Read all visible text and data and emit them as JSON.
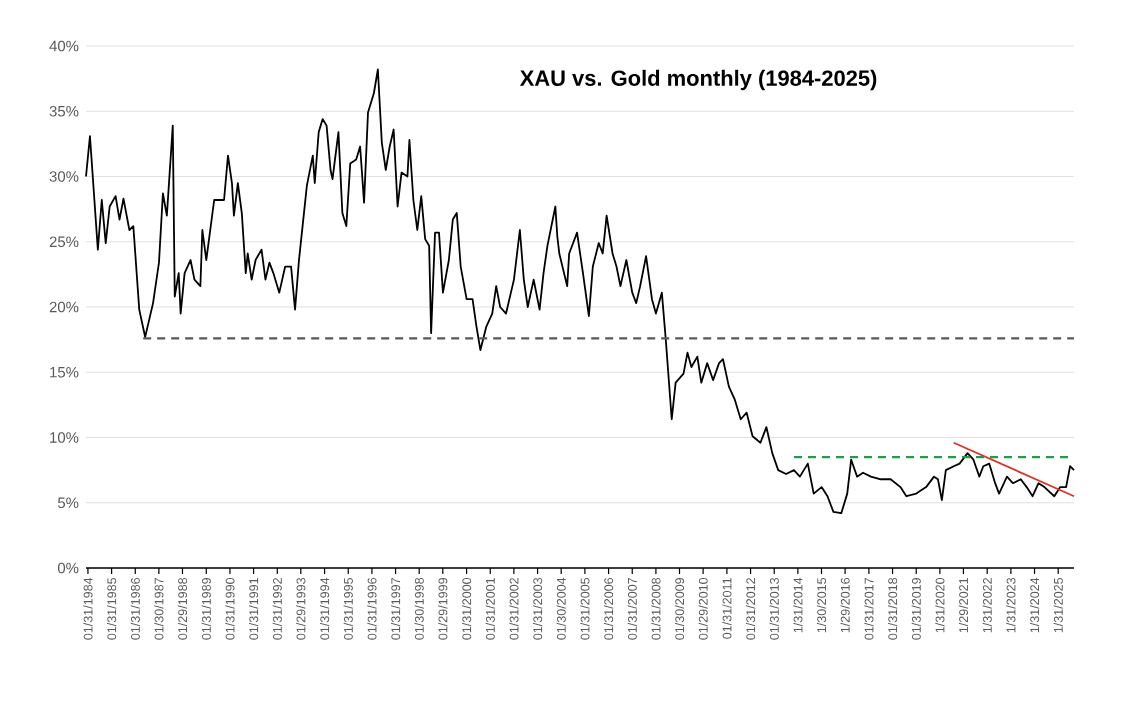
{
  "chart_data": {
    "type": "line",
    "title": "XAU vs. Gold monthly (1984-2025)",
    "xlim": [
      "1984-01",
      "2025-10"
    ],
    "ylim": [
      0,
      40
    ],
    "grid": "y",
    "yticks": [
      {
        "value": 0,
        "label": "0%"
      },
      {
        "value": 5,
        "label": "5%"
      },
      {
        "value": 10,
        "label": "10%"
      },
      {
        "value": 15,
        "label": "15%"
      },
      {
        "value": 20,
        "label": "20%"
      },
      {
        "value": 25,
        "label": "25%"
      },
      {
        "value": 30,
        "label": "30%"
      },
      {
        "value": 35,
        "label": "35%"
      },
      {
        "value": 40,
        "label": "40%"
      }
    ],
    "xticks": [
      {
        "value": "1984-01-31",
        "label": "01/31/1984"
      },
      {
        "value": "1985-01-31",
        "label": "01/31/1985"
      },
      {
        "value": "1986-01-31",
        "label": "01/31/1986"
      },
      {
        "value": "1987-01-30",
        "label": "01/30/1987"
      },
      {
        "value": "1988-01-29",
        "label": "01/29/1988"
      },
      {
        "value": "1989-01-31",
        "label": "01/31/1989"
      },
      {
        "value": "1990-01-31",
        "label": "01/31/1990"
      },
      {
        "value": "1991-01-31",
        "label": "01/31/1991"
      },
      {
        "value": "1992-01-31",
        "label": "01/31/1992"
      },
      {
        "value": "1993-01-29",
        "label": "01/29/1993"
      },
      {
        "value": "1994-01-31",
        "label": "01/31/1994"
      },
      {
        "value": "1995-01-31",
        "label": "01/31/1995"
      },
      {
        "value": "1996-01-31",
        "label": "01/31/1996"
      },
      {
        "value": "1997-01-31",
        "label": "01/31/1997"
      },
      {
        "value": "1998-01-30",
        "label": "01/30/1998"
      },
      {
        "value": "1999-01-29",
        "label": "01/29/1999"
      },
      {
        "value": "2000-01-31",
        "label": "01/31/2000"
      },
      {
        "value": "2001-01-31",
        "label": "01/31/2001"
      },
      {
        "value": "2002-01-31",
        "label": "01/31/2002"
      },
      {
        "value": "2003-01-31",
        "label": "01/31/2003"
      },
      {
        "value": "2004-01-30",
        "label": "01/30/2004"
      },
      {
        "value": "2005-01-31",
        "label": "01/31/2005"
      },
      {
        "value": "2006-01-31",
        "label": "01/31/2006"
      },
      {
        "value": "2007-01-31",
        "label": "01/31/2007"
      },
      {
        "value": "2008-01-31",
        "label": "01/31/2008"
      },
      {
        "value": "2009-01-30",
        "label": "01/30/2009"
      },
      {
        "value": "2010-01-29",
        "label": "01/29/2010"
      },
      {
        "value": "2011-01-31",
        "label": "01/31/2011"
      },
      {
        "value": "2012-01-31",
        "label": "01/31/2012"
      },
      {
        "value": "2013-01-31",
        "label": "01/31/2013"
      },
      {
        "value": "2014-01-31",
        "label": "1/31/2014"
      },
      {
        "value": "2015-01-30",
        "label": "1/30/2015"
      },
      {
        "value": "2016-01-29",
        "label": "1/29/2016"
      },
      {
        "value": "2017-01-31",
        "label": "01/31/2017"
      },
      {
        "value": "2018-01-31",
        "label": "01/31/2018"
      },
      {
        "value": "2019-01-31",
        "label": "01/31/2019"
      },
      {
        "value": "2020-01-31",
        "label": "1/31/2020"
      },
      {
        "value": "2021-01-29",
        "label": "1/29/2021"
      },
      {
        "value": "2022-01-31",
        "label": "1/31/2022"
      },
      {
        "value": "2023-01-31",
        "label": "1/31/2023"
      },
      {
        "value": "2024-01-31",
        "label": "1/31/2024"
      },
      {
        "value": "2025-01-31",
        "label": "1/31/2025"
      }
    ],
    "series": [
      {
        "color": "#000000",
        "line_style": "solid",
        "x": [
          "1984-01",
          "1984-03",
          "1984-07",
          "1984-09",
          "1984-11",
          "1985-01",
          "1985-04",
          "1985-06",
          "1985-08",
          "1985-11",
          "1986-01",
          "1986-04",
          "1986-07",
          "1986-11",
          "1987-02",
          "1987-04",
          "1987-06",
          "1987-09",
          "1987-10",
          "1987-12",
          "1988-01",
          "1988-03",
          "1988-06",
          "1988-08",
          "1988-11",
          "1988-12",
          "1989-02",
          "1989-06",
          "1989-11",
          "1990-01",
          "1990-03",
          "1990-04",
          "1990-06",
          "1990-08",
          "1990-10",
          "1990-11",
          "1991-01",
          "1991-03",
          "1991-06",
          "1991-08",
          "1991-10",
          "1991-12",
          "1992-03",
          "1992-06",
          "1992-09",
          "1992-11",
          "1993-01",
          "1993-05",
          "1993-08",
          "1993-09",
          "1993-11",
          "1994-01",
          "1994-03",
          "1994-05",
          "1994-06",
          "1994-09",
          "1994-11",
          "1995-01",
          "1995-03",
          "1995-06",
          "1995-08",
          "1995-10",
          "1995-12",
          "1996-03",
          "1996-05",
          "1996-07",
          "1996-09",
          "1996-11",
          "1997-01",
          "1997-03",
          "1997-05",
          "1997-08",
          "1997-09",
          "1997-11",
          "1998-01",
          "1998-03",
          "1998-05",
          "1998-07",
          "1998-08",
          "1998-10",
          "1998-12",
          "1999-02",
          "1999-05",
          "1999-07",
          "1999-09",
          "1999-11",
          "2000-02",
          "2000-05",
          "2000-07",
          "2000-09",
          "2000-12",
          "2001-03",
          "2001-05",
          "2001-07",
          "2001-10",
          "2002-02",
          "2002-05",
          "2002-07",
          "2002-09",
          "2002-12",
          "2003-03",
          "2003-05",
          "2003-07",
          "2003-11",
          "2003-12",
          "2004-01",
          "2004-05",
          "2004-06",
          "2004-10",
          "2005-01",
          "2005-04",
          "2005-06",
          "2005-09",
          "2005-11",
          "2006-01",
          "2006-04",
          "2006-06",
          "2006-08",
          "2006-11",
          "2007-02",
          "2007-04",
          "2007-06",
          "2007-09",
          "2007-12",
          "2008-02",
          "2008-05",
          "2008-07",
          "2008-10",
          "2008-12",
          "2009-04",
          "2009-06",
          "2009-08",
          "2009-11",
          "2010-01",
          "2010-04",
          "2010-07",
          "2010-10",
          "2010-12",
          "2011-03",
          "2011-06",
          "2011-09",
          "2011-12",
          "2012-03",
          "2012-07",
          "2012-10",
          "2013-01",
          "2013-04",
          "2013-08",
          "2013-12",
          "2014-03",
          "2014-07",
          "2014-10",
          "2015-02",
          "2015-05",
          "2015-08",
          "2015-12",
          "2016-03",
          "2016-05",
          "2016-08",
          "2016-11",
          "2017-03",
          "2017-08",
          "2018-01",
          "2018-06",
          "2018-09",
          "2019-02",
          "2019-07",
          "2019-11",
          "2020-01",
          "2020-03",
          "2020-05",
          "2020-09",
          "2020-12",
          "2021-04",
          "2021-07",
          "2021-10",
          "2021-12",
          "2022-03",
          "2022-06",
          "2022-08",
          "2022-12",
          "2023-03",
          "2023-07",
          "2023-10",
          "2024-01",
          "2024-04",
          "2024-07",
          "2024-12",
          "2025-03",
          "2025-06",
          "2025-08",
          "2025-10"
        ],
        "values": [
          30.0,
          33.1,
          24.4,
          28.2,
          24.9,
          27.7,
          28.5,
          26.7,
          28.3,
          25.9,
          26.2,
          19.8,
          17.7,
          20.3,
          23.4,
          28.7,
          27.0,
          33.9,
          20.8,
          22.6,
          19.5,
          22.6,
          23.6,
          22.1,
          21.6,
          25.9,
          23.6,
          28.2,
          28.2,
          31.6,
          29.5,
          27.0,
          29.5,
          27.2,
          22.6,
          24.1,
          22.1,
          23.6,
          24.4,
          22.1,
          23.4,
          22.6,
          21.1,
          23.1,
          23.1,
          19.8,
          23.6,
          29.3,
          31.6,
          29.5,
          33.4,
          34.4,
          33.9,
          30.5,
          29.8,
          33.4,
          27.2,
          26.2,
          31.0,
          31.3,
          32.3,
          28.0,
          34.9,
          36.4,
          38.2,
          32.6,
          30.5,
          32.3,
          33.6,
          27.7,
          30.3,
          30.0,
          32.8,
          28.2,
          25.9,
          28.5,
          25.2,
          24.7,
          18.0,
          25.7,
          25.7,
          21.1,
          23.6,
          26.7,
          27.2,
          23.1,
          20.6,
          20.6,
          18.5,
          16.7,
          18.5,
          19.5,
          21.6,
          20.0,
          19.5,
          22.1,
          25.9,
          22.1,
          20.0,
          22.1,
          19.8,
          22.6,
          24.7,
          27.7,
          25.4,
          24.1,
          21.6,
          24.1,
          25.7,
          22.6,
          19.3,
          23.1,
          24.9,
          24.1,
          27.0,
          24.1,
          23.1,
          21.6,
          23.6,
          21.1,
          20.3,
          21.6,
          23.9,
          20.6,
          19.5,
          21.1,
          17.5,
          11.4,
          14.2,
          14.9,
          16.5,
          15.4,
          16.2,
          14.2,
          15.7,
          14.4,
          15.7,
          16.0,
          13.9,
          12.9,
          11.4,
          11.9,
          10.1,
          9.6,
          10.8,
          8.8,
          7.5,
          7.2,
          7.5,
          7.0,
          8.0,
          5.7,
          6.2,
          5.5,
          4.3,
          4.2,
          5.7,
          8.3,
          7.0,
          7.3,
          7.0,
          6.8,
          6.8,
          6.2,
          5.5,
          5.7,
          6.2,
          7.0,
          6.8,
          5.2,
          7.5,
          7.8,
          8.0,
          8.8,
          8.3,
          7.0,
          7.8,
          8.0,
          6.5,
          5.7,
          7.0,
          6.5,
          6.8,
          6.2,
          5.5,
          6.5,
          6.2,
          5.5,
          6.2,
          6.2,
          7.8,
          7.5
        ]
      },
      {
        "color": "#595959",
        "line_style": "dashed",
        "x": [
          "1986-06",
          "2025-10"
        ],
        "values": [
          17.6,
          17.6
        ]
      },
      {
        "color": "#1e9e4a",
        "line_style": "dashed",
        "x": [
          "2013-12",
          "2025-10"
        ],
        "values": [
          8.5,
          8.5
        ]
      },
      {
        "color": "#d9342b",
        "line_style": "solid",
        "x": [
          "2020-09",
          "2025-10"
        ],
        "values": [
          9.6,
          5.5
        ]
      }
    ]
  }
}
